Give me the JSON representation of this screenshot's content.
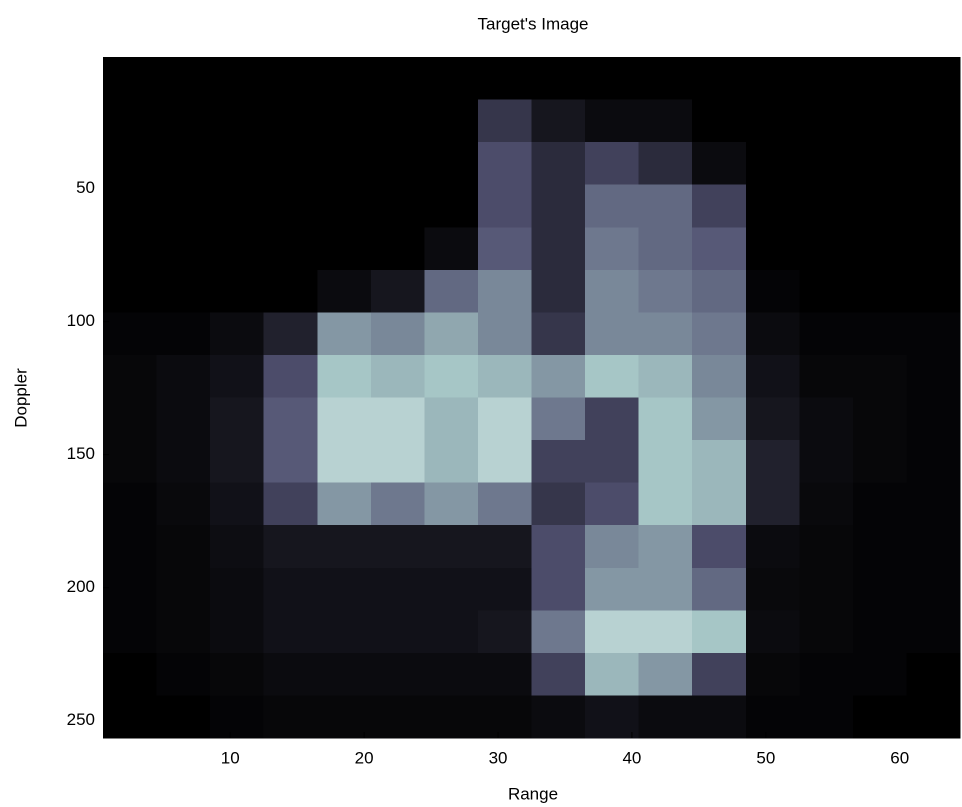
{
  "chart_data": {
    "type": "heatmap",
    "title": "Target's Image",
    "xlabel": "Range",
    "ylabel": "Doppler",
    "colormap": "bone",
    "clim": [
      0,
      1
    ],
    "xlim": [
      0.5,
      64.5
    ],
    "ylim": [
      0.5,
      256.5
    ],
    "y_reversed": true,
    "xticks": [
      10,
      20,
      30,
      40,
      50,
      60
    ],
    "yticks": [
      50,
      100,
      150,
      200,
      250
    ],
    "xbins": [
      0.5,
      4.5,
      8.5,
      12.5,
      16.5,
      20.5,
      24.5,
      28.5,
      32.5,
      36.5,
      40.5,
      44.5,
      48.5,
      52.5,
      56.5,
      60.5,
      64.5
    ],
    "ybins": [
      0.5,
      16.5,
      32.5,
      48.5,
      64.5,
      80.5,
      96.5,
      112.5,
      128.5,
      144.5,
      160.5,
      176.5,
      192.5,
      208.5,
      224.5,
      240.5,
      256.5
    ],
    "values": [
      [
        0,
        0,
        0,
        0,
        0,
        0,
        0,
        0,
        0,
        0,
        0,
        0,
        0,
        0,
        0,
        0
      ],
      [
        0,
        0,
        0,
        0,
        0,
        0,
        0,
        0.25,
        0.1,
        0.05,
        0.05,
        0,
        0,
        0,
        0,
        0
      ],
      [
        0,
        0,
        0,
        0,
        0,
        0,
        0,
        0.35,
        0.2,
        0.3,
        0.2,
        0.05,
        0,
        0,
        0,
        0
      ],
      [
        0,
        0,
        0,
        0,
        0,
        0,
        0,
        0.35,
        0.2,
        0.45,
        0.45,
        0.3,
        0,
        0,
        0,
        0
      ],
      [
        0,
        0,
        0,
        0,
        0,
        0,
        0.05,
        0.4,
        0.2,
        0.5,
        0.45,
        0.4,
        0,
        0,
        0,
        0
      ],
      [
        0,
        0,
        0,
        0,
        0.05,
        0.1,
        0.45,
        0.55,
        0.2,
        0.55,
        0.5,
        0.45,
        0.02,
        0,
        0,
        0
      ],
      [
        0.02,
        0.02,
        0.05,
        0.15,
        0.6,
        0.55,
        0.65,
        0.55,
        0.25,
        0.55,
        0.55,
        0.5,
        0.05,
        0.02,
        0.02,
        0.02
      ],
      [
        0.03,
        0.05,
        0.08,
        0.35,
        0.75,
        0.7,
        0.75,
        0.7,
        0.6,
        0.75,
        0.7,
        0.55,
        0.08,
        0.03,
        0.03,
        0.02
      ],
      [
        0.03,
        0.05,
        0.1,
        0.4,
        0.8,
        0.8,
        0.7,
        0.8,
        0.5,
        0.3,
        0.75,
        0.6,
        0.1,
        0.05,
        0.03,
        0.02
      ],
      [
        0.03,
        0.05,
        0.1,
        0.4,
        0.8,
        0.8,
        0.7,
        0.8,
        0.3,
        0.3,
        0.75,
        0.7,
        0.15,
        0.05,
        0.03,
        0.02
      ],
      [
        0.02,
        0.04,
        0.08,
        0.3,
        0.6,
        0.5,
        0.6,
        0.5,
        0.25,
        0.35,
        0.75,
        0.7,
        0.15,
        0.04,
        0.02,
        0.02
      ],
      [
        0.02,
        0.03,
        0.06,
        0.1,
        0.1,
        0.1,
        0.1,
        0.1,
        0.35,
        0.55,
        0.6,
        0.35,
        0.05,
        0.03,
        0.02,
        0.02
      ],
      [
        0.02,
        0.03,
        0.05,
        0.08,
        0.08,
        0.08,
        0.08,
        0.08,
        0.35,
        0.6,
        0.6,
        0.45,
        0.04,
        0.03,
        0.02,
        0.02
      ],
      [
        0.02,
        0.03,
        0.05,
        0.08,
        0.08,
        0.08,
        0.08,
        0.1,
        0.5,
        0.8,
        0.8,
        0.75,
        0.05,
        0.03,
        0.02,
        0.02
      ],
      [
        0,
        0.02,
        0.03,
        0.05,
        0.05,
        0.05,
        0.05,
        0.05,
        0.3,
        0.7,
        0.6,
        0.3,
        0.03,
        0.02,
        0.02,
        0
      ],
      [
        0,
        0,
        0.02,
        0.03,
        0.03,
        0.03,
        0.03,
        0.03,
        0.05,
        0.08,
        0.05,
        0.05,
        0.02,
        0.02,
        0,
        0
      ]
    ]
  }
}
